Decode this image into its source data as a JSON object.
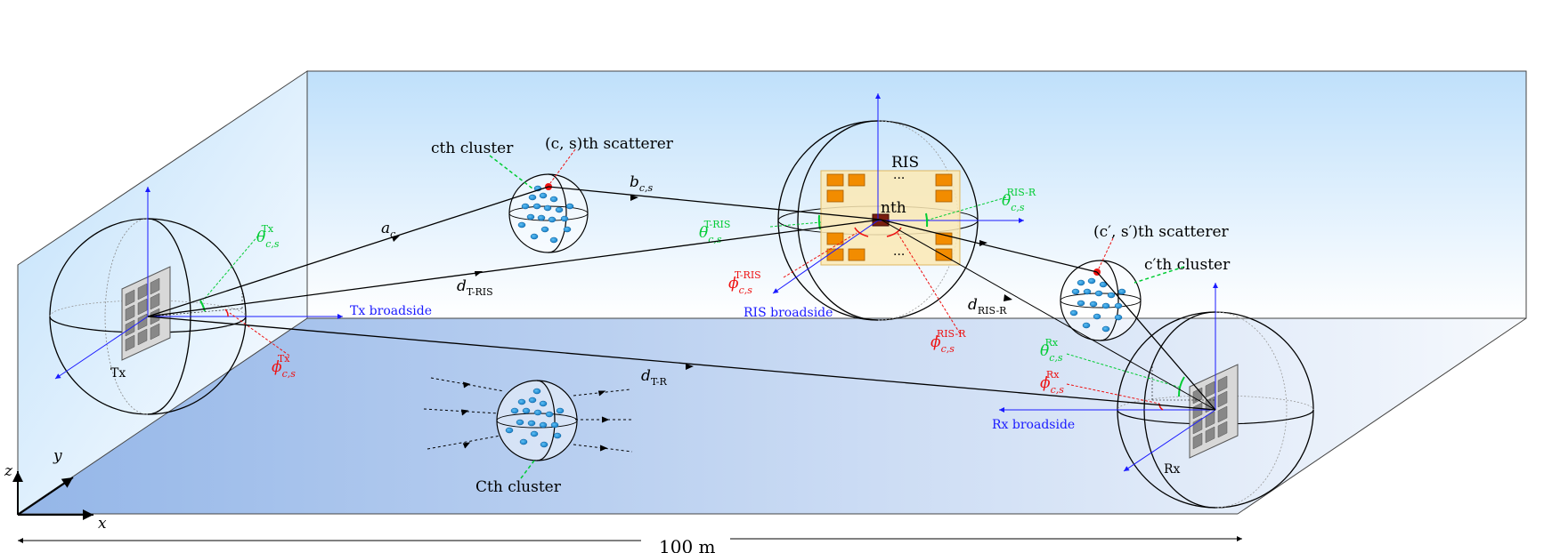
{
  "colors": {
    "axis_blue": "#1a1aff",
    "angle_green": "#00cc33",
    "angle_red": "#ee1111",
    "scatterer_fill": "#1e90d6",
    "ris_panel": "#fbe9b4",
    "ris_element": "#f28c00",
    "room_wall": "#cfe8fb",
    "floor_dark": "#9dbdea"
  },
  "labels": {
    "tx": "Tx",
    "rx": "Rx",
    "ris": "RIS",
    "nth": "nth",
    "dots": "···",
    "tx_broadside": "Tx broadside",
    "ris_broadside": "RIS broadside",
    "rx_broadside": "Rx broadside",
    "cth_cluster": "cth cluster",
    "cs_scatterer": "(c, s)th scatterer",
    "cprime_scatterer": "(c′, s′)th scatterer",
    "cprime_cluster": "c′th cluster",
    "Cth_cluster": "Cth cluster",
    "distance": "100 m",
    "axis_x": "x",
    "axis_y": "y",
    "axis_z": "z"
  },
  "symbols": {
    "a_c": "a",
    "a_c_sub": "c",
    "b_cs": "b",
    "b_cs_sub": "c,s",
    "d_t_ris": "d",
    "d_t_ris_sub": "T-RIS",
    "d_t_r": "d",
    "d_t_r_sub": "T-R",
    "d_ris_r": "d",
    "d_ris_r_sub": "RIS-R",
    "theta": "θ",
    "phi": "ϕ",
    "cs_sub": "c,s",
    "sup_tx": "Tx",
    "sup_rx": "Rx",
    "sup_t_ris": "T-RIS",
    "sup_ris_r": "RIS-R"
  }
}
